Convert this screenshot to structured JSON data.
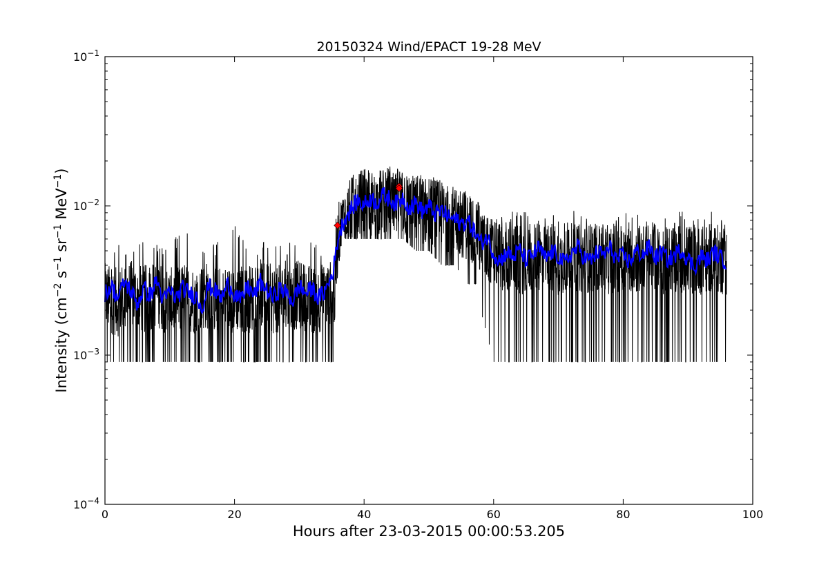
{
  "chart_data": {
    "type": "line",
    "title": "20150324 Wind/EPACT 19-28 MeV",
    "xlabel": "Hours after 23-03-2015 00:00:53.205",
    "ylabel_parts": {
      "prefix": "Intensity (cm",
      "exp1": "−2",
      "s": " s",
      "exp2": "−1",
      "sr": " sr",
      "exp3": "−1",
      "mev": " MeV",
      "exp4": "−1",
      "suffix": ")"
    },
    "xlim": [
      0,
      100
    ],
    "ylim": [
      0.0001,
      0.1
    ],
    "yscale": "log",
    "grid": false,
    "x_ticks": [
      "0",
      "20",
      "40",
      "60",
      "80",
      "100"
    ],
    "y_ticks": [
      {
        "base": "10",
        "exp": "−4"
      },
      {
        "base": "10",
        "exp": "−3"
      },
      {
        "base": "10",
        "exp": "−2"
      },
      {
        "base": "10",
        "exp": "−1"
      }
    ],
    "colors": {
      "raw": "#000000",
      "smoothed": "#0000ff",
      "markers": "#ff0000"
    },
    "series": [
      {
        "id": "raw",
        "x": [
          0,
          2,
          4,
          6,
          8,
          10,
          12,
          14,
          16,
          18,
          20,
          22,
          24,
          26,
          28,
          30,
          32,
          34,
          35.5,
          36,
          37,
          38,
          40,
          42,
          44,
          46,
          48,
          50,
          52,
          54,
          56,
          57.5,
          58,
          60,
          62,
          64,
          66,
          68,
          70,
          72,
          74,
          76,
          78,
          80,
          82,
          84,
          86,
          88,
          90,
          92,
          94,
          96
        ],
        "y": [
          0.0026,
          0.0024,
          0.0027,
          0.0025,
          0.0028,
          0.0024,
          0.0026,
          0.0025,
          0.0027,
          0.0024,
          0.0026,
          0.0025,
          0.0028,
          0.0025,
          0.0026,
          0.0027,
          0.0025,
          0.0026,
          0.0028,
          0.0072,
          0.009,
          0.0105,
          0.0115,
          0.0112,
          0.0118,
          0.0112,
          0.0102,
          0.0098,
          0.0092,
          0.0085,
          0.0078,
          0.0072,
          0.0058,
          0.0052,
          0.0048,
          0.0046,
          0.0047,
          0.0049,
          0.0046,
          0.0048,
          0.0047,
          0.0048,
          0.0046,
          0.0049,
          0.0047,
          0.0048,
          0.0046,
          0.0048,
          0.0047,
          0.0046,
          0.0048,
          0.0045
        ],
        "band_low": [
          0.0009,
          0.0009,
          0.0009,
          0.0009,
          0.0009,
          0.0009,
          0.0009,
          0.0009,
          0.0009,
          0.0009,
          0.0009,
          0.0009,
          0.0009,
          0.0009,
          0.0009,
          0.0009,
          0.0009,
          0.0009,
          0.0009,
          0.004,
          0.006,
          0.006,
          0.006,
          0.006,
          0.006,
          0.006,
          0.005,
          0.005,
          0.004,
          0.004,
          0.003,
          0.003,
          0.002,
          0.0009,
          0.0009,
          0.0009,
          0.0009,
          0.0009,
          0.0009,
          0.0009,
          0.0009,
          0.0009,
          0.0009,
          0.0009,
          0.0009,
          0.0009,
          0.0009,
          0.0009,
          0.0009,
          0.0009,
          0.0009,
          0.0009
        ],
        "band_high": [
          0.0053,
          0.006,
          0.0053,
          0.006,
          0.0061,
          0.0053,
          0.0075,
          0.006,
          0.0053,
          0.006,
          0.0075,
          0.0053,
          0.006,
          0.006,
          0.0053,
          0.0075,
          0.006,
          0.0053,
          0.0075,
          0.0105,
          0.013,
          0.016,
          0.018,
          0.017,
          0.019,
          0.017,
          0.016,
          0.017,
          0.015,
          0.014,
          0.014,
          0.012,
          0.0095,
          0.009,
          0.009,
          0.0095,
          0.009,
          0.0085,
          0.009,
          0.0095,
          0.009,
          0.0085,
          0.009,
          0.0095,
          0.009,
          0.0085,
          0.009,
          0.0095,
          0.009,
          0.0085,
          0.0095,
          0.0085
        ]
      },
      {
        "id": "smoothed",
        "x": [
          0,
          1,
          2,
          3,
          4,
          5,
          6,
          7,
          8,
          9,
          10,
          11,
          12,
          13,
          14,
          15,
          16,
          17,
          18,
          19,
          20,
          21,
          22,
          23,
          24,
          25,
          26,
          27,
          28,
          29,
          30,
          31,
          32,
          33,
          34,
          35,
          35.5,
          36,
          37,
          38,
          39,
          40,
          41,
          42,
          43,
          44,
          45,
          46,
          47,
          48,
          49,
          50,
          51,
          52,
          53,
          54,
          55,
          56,
          57,
          58,
          59,
          60,
          61,
          62,
          63,
          64,
          65,
          66,
          67,
          68,
          69,
          70,
          71,
          72,
          73,
          74,
          75,
          76,
          77,
          78,
          79,
          80,
          81,
          82,
          83,
          84,
          85,
          86,
          87,
          88,
          89,
          90,
          91,
          92,
          93,
          94,
          95,
          96
        ],
        "y": [
          0.0026,
          0.0029,
          0.0024,
          0.0031,
          0.0027,
          0.0022,
          0.0028,
          0.0025,
          0.0032,
          0.0023,
          0.0027,
          0.0024,
          0.0028,
          0.0026,
          0.0025,
          0.0021,
          0.0029,
          0.0027,
          0.0024,
          0.003,
          0.0026,
          0.0023,
          0.0029,
          0.0025,
          0.0031,
          0.0027,
          0.0024,
          0.0028,
          0.0026,
          0.0023,
          0.0029,
          0.0026,
          0.0028,
          0.0024,
          0.0027,
          0.0034,
          0.0043,
          0.0062,
          0.0082,
          0.0095,
          0.0108,
          0.0102,
          0.0112,
          0.0105,
          0.0118,
          0.0111,
          0.0103,
          0.0114,
          0.0097,
          0.0105,
          0.0092,
          0.0099,
          0.0088,
          0.0093,
          0.0084,
          0.0081,
          0.0076,
          0.0079,
          0.0068,
          0.0056,
          0.0062,
          0.0048,
          0.0043,
          0.0049,
          0.0045,
          0.0051,
          0.0043,
          0.0047,
          0.0052,
          0.0044,
          0.0049,
          0.0046,
          0.0041,
          0.0048,
          0.0053,
          0.0045,
          0.0043,
          0.0049,
          0.0047,
          0.0052,
          0.0044,
          0.0046,
          0.0042,
          0.005,
          0.0047,
          0.0053,
          0.0045,
          0.0049,
          0.0043,
          0.0047,
          0.0051,
          0.0044,
          0.0039,
          0.0046,
          0.0043,
          0.0049,
          0.0045,
          0.0042
        ]
      },
      {
        "id": "markers",
        "points": [
          {
            "x": 35.9,
            "y": 0.0074
          },
          {
            "x": 45.4,
            "y": 0.0135
          },
          {
            "x": 45.4,
            "y": 0.0131
          }
        ]
      }
    ]
  }
}
